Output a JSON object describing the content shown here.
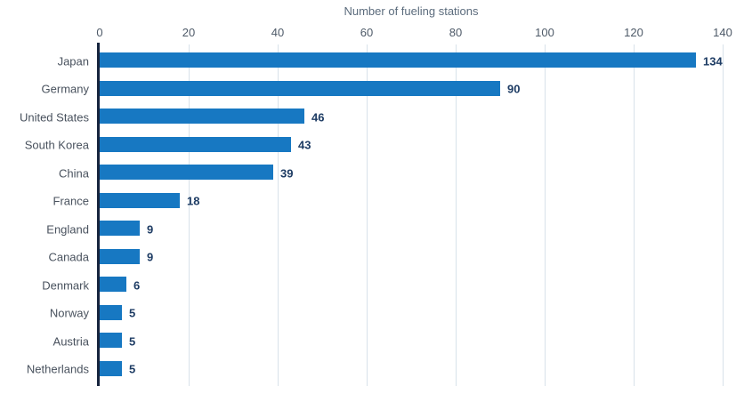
{
  "chart_data": {
    "type": "bar",
    "orientation": "horizontal",
    "title": "Number of fueling stations",
    "categories": [
      "Japan",
      "Germany",
      "United States",
      "South Korea",
      "China",
      "France",
      "England",
      "Canada",
      "Denmark",
      "Norway",
      "Austria",
      "Netherlands"
    ],
    "values": [
      134,
      90,
      46,
      43,
      39,
      18,
      9,
      9,
      6,
      5,
      5,
      5
    ],
    "xlabel": "Number of fueling stations",
    "ylabel": "",
    "xlim": [
      0,
      140
    ],
    "xticks": [
      0,
      20,
      40,
      60,
      80,
      100,
      120,
      140
    ],
    "grid": "vertical",
    "legend": "none",
    "value_labels_shown": true,
    "colors": {
      "bar": "#1778c2",
      "value_label": "#1e3c64",
      "tick_label": "#4e5a68",
      "category_label": "#49525e",
      "axis_title": "#5c6c7d",
      "gridline": "#d8e2ea",
      "axis_spine": "#16243e"
    }
  }
}
